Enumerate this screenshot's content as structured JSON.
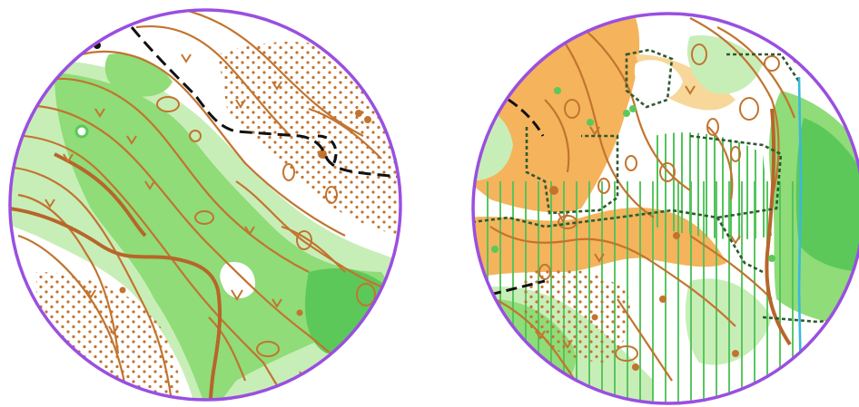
{
  "maps": [
    {
      "id": "left",
      "description": ""
    },
    {
      "id": "right",
      "description": ""
    }
  ],
  "colors": {
    "background": "#ffffff",
    "frame": "#9a4fe0",
    "contour": "#c2742f",
    "contour_index": "#b8652a",
    "vegetation_light": "#c8eeb8",
    "vegetation_mid": "#8fdc78",
    "vegetation_dark": "#5cc85a",
    "open_land": "#f5b35c",
    "open_land_pale": "#f7d79a",
    "track": "#111111",
    "vegetation_boundary": "#2e5a2e",
    "stream": "#3ab8e0",
    "undergrowth_stripes": "#52c45a",
    "rock": "#c2742f"
  },
  "symbols": {
    "frame": "circle-frame",
    "track": "dashed-track",
    "stream": "blue-stream",
    "knoll": "dot-knoll",
    "depression": "v-depression"
  }
}
